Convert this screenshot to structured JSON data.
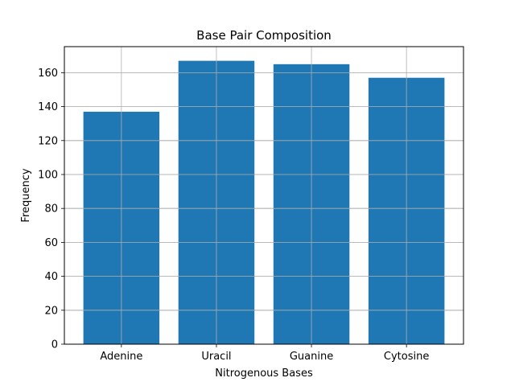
{
  "chart_data": {
    "type": "bar",
    "title": "Base Pair Composition",
    "xlabel": "Nitrogenous Bases",
    "ylabel": "Frequency",
    "categories": [
      "Adenine",
      "Uracil",
      "Guanine",
      "Cytosine"
    ],
    "values": [
      137,
      167,
      165,
      157
    ],
    "ylim": [
      0,
      175.35
    ],
    "yticks": [
      0,
      20,
      40,
      60,
      80,
      100,
      120,
      140,
      160
    ],
    "grid": true,
    "bar_color": "#1f77b4",
    "grid_color": "#b0b0b0"
  }
}
